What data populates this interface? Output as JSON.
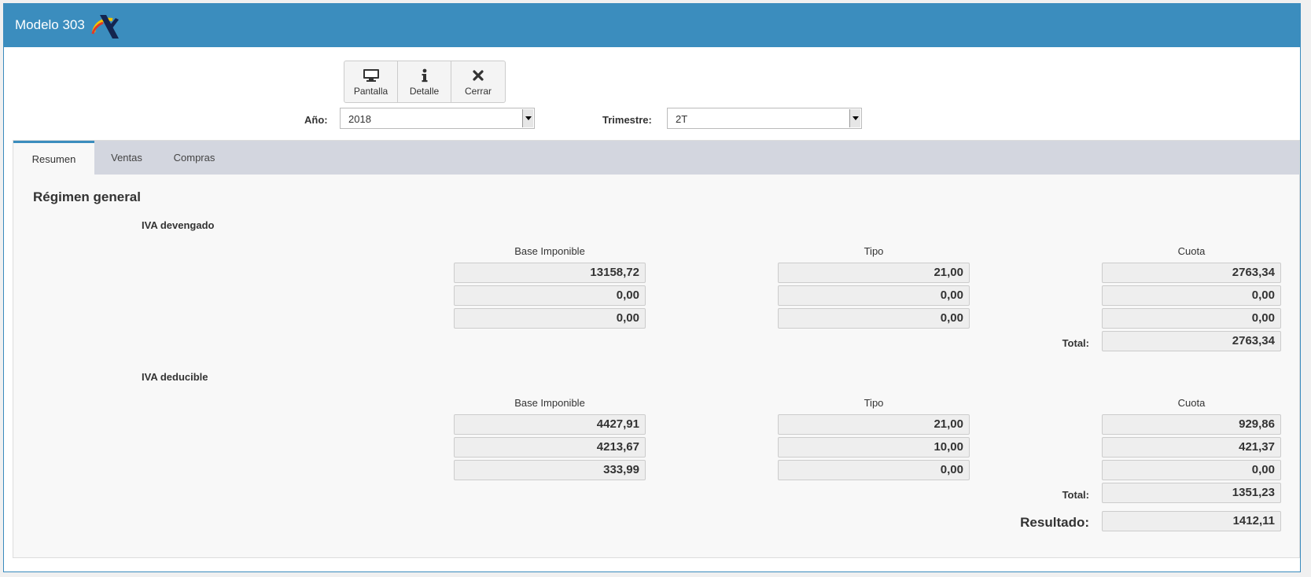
{
  "window": {
    "title": "Modelo 303",
    "logo": "aeat-logo"
  },
  "toolbar": {
    "pantalla": {
      "label": "Pantalla",
      "icon": "monitor-icon"
    },
    "detalle": {
      "label": "Detalle",
      "icon": "info-icon"
    },
    "cerrar": {
      "label": "Cerrar",
      "icon": "close-icon"
    }
  },
  "filters": {
    "anio": {
      "label": "Año:",
      "value": "2018"
    },
    "trimestre": {
      "label": "Trimestre:",
      "value": "2T"
    }
  },
  "tabs": [
    {
      "label": "Resumen",
      "active": true
    },
    {
      "label": "Ventas",
      "active": false
    },
    {
      "label": "Compras",
      "active": false
    }
  ],
  "section": {
    "title": "Régimen general"
  },
  "columns": {
    "base": "Base Imponible",
    "tipo": "Tipo",
    "cuota": "Cuota"
  },
  "devengado": {
    "title": "IVA devengado",
    "rows": [
      {
        "base": "13158,72",
        "tipo": "21,00",
        "cuota": "2763,34"
      },
      {
        "base": "0,00",
        "tipo": "0,00",
        "cuota": "0,00"
      },
      {
        "base": "0,00",
        "tipo": "0,00",
        "cuota": "0,00"
      }
    ],
    "total_label": "Total:",
    "total": "2763,34"
  },
  "deducible": {
    "title": "IVA deducible",
    "rows": [
      {
        "base": "4427,91",
        "tipo": "21,00",
        "cuota": "929,86"
      },
      {
        "base": "4213,67",
        "tipo": "10,00",
        "cuota": "421,37"
      },
      {
        "base": "333,99",
        "tipo": "0,00",
        "cuota": "0,00"
      }
    ],
    "total_label": "Total:",
    "total": "1351,23"
  },
  "resultado": {
    "label": "Resultado:",
    "value": "1412,11"
  },
  "colors": {
    "header": "#3b8dbe",
    "tabbar": "#d3d6df",
    "field_bg": "#eeeeee"
  }
}
